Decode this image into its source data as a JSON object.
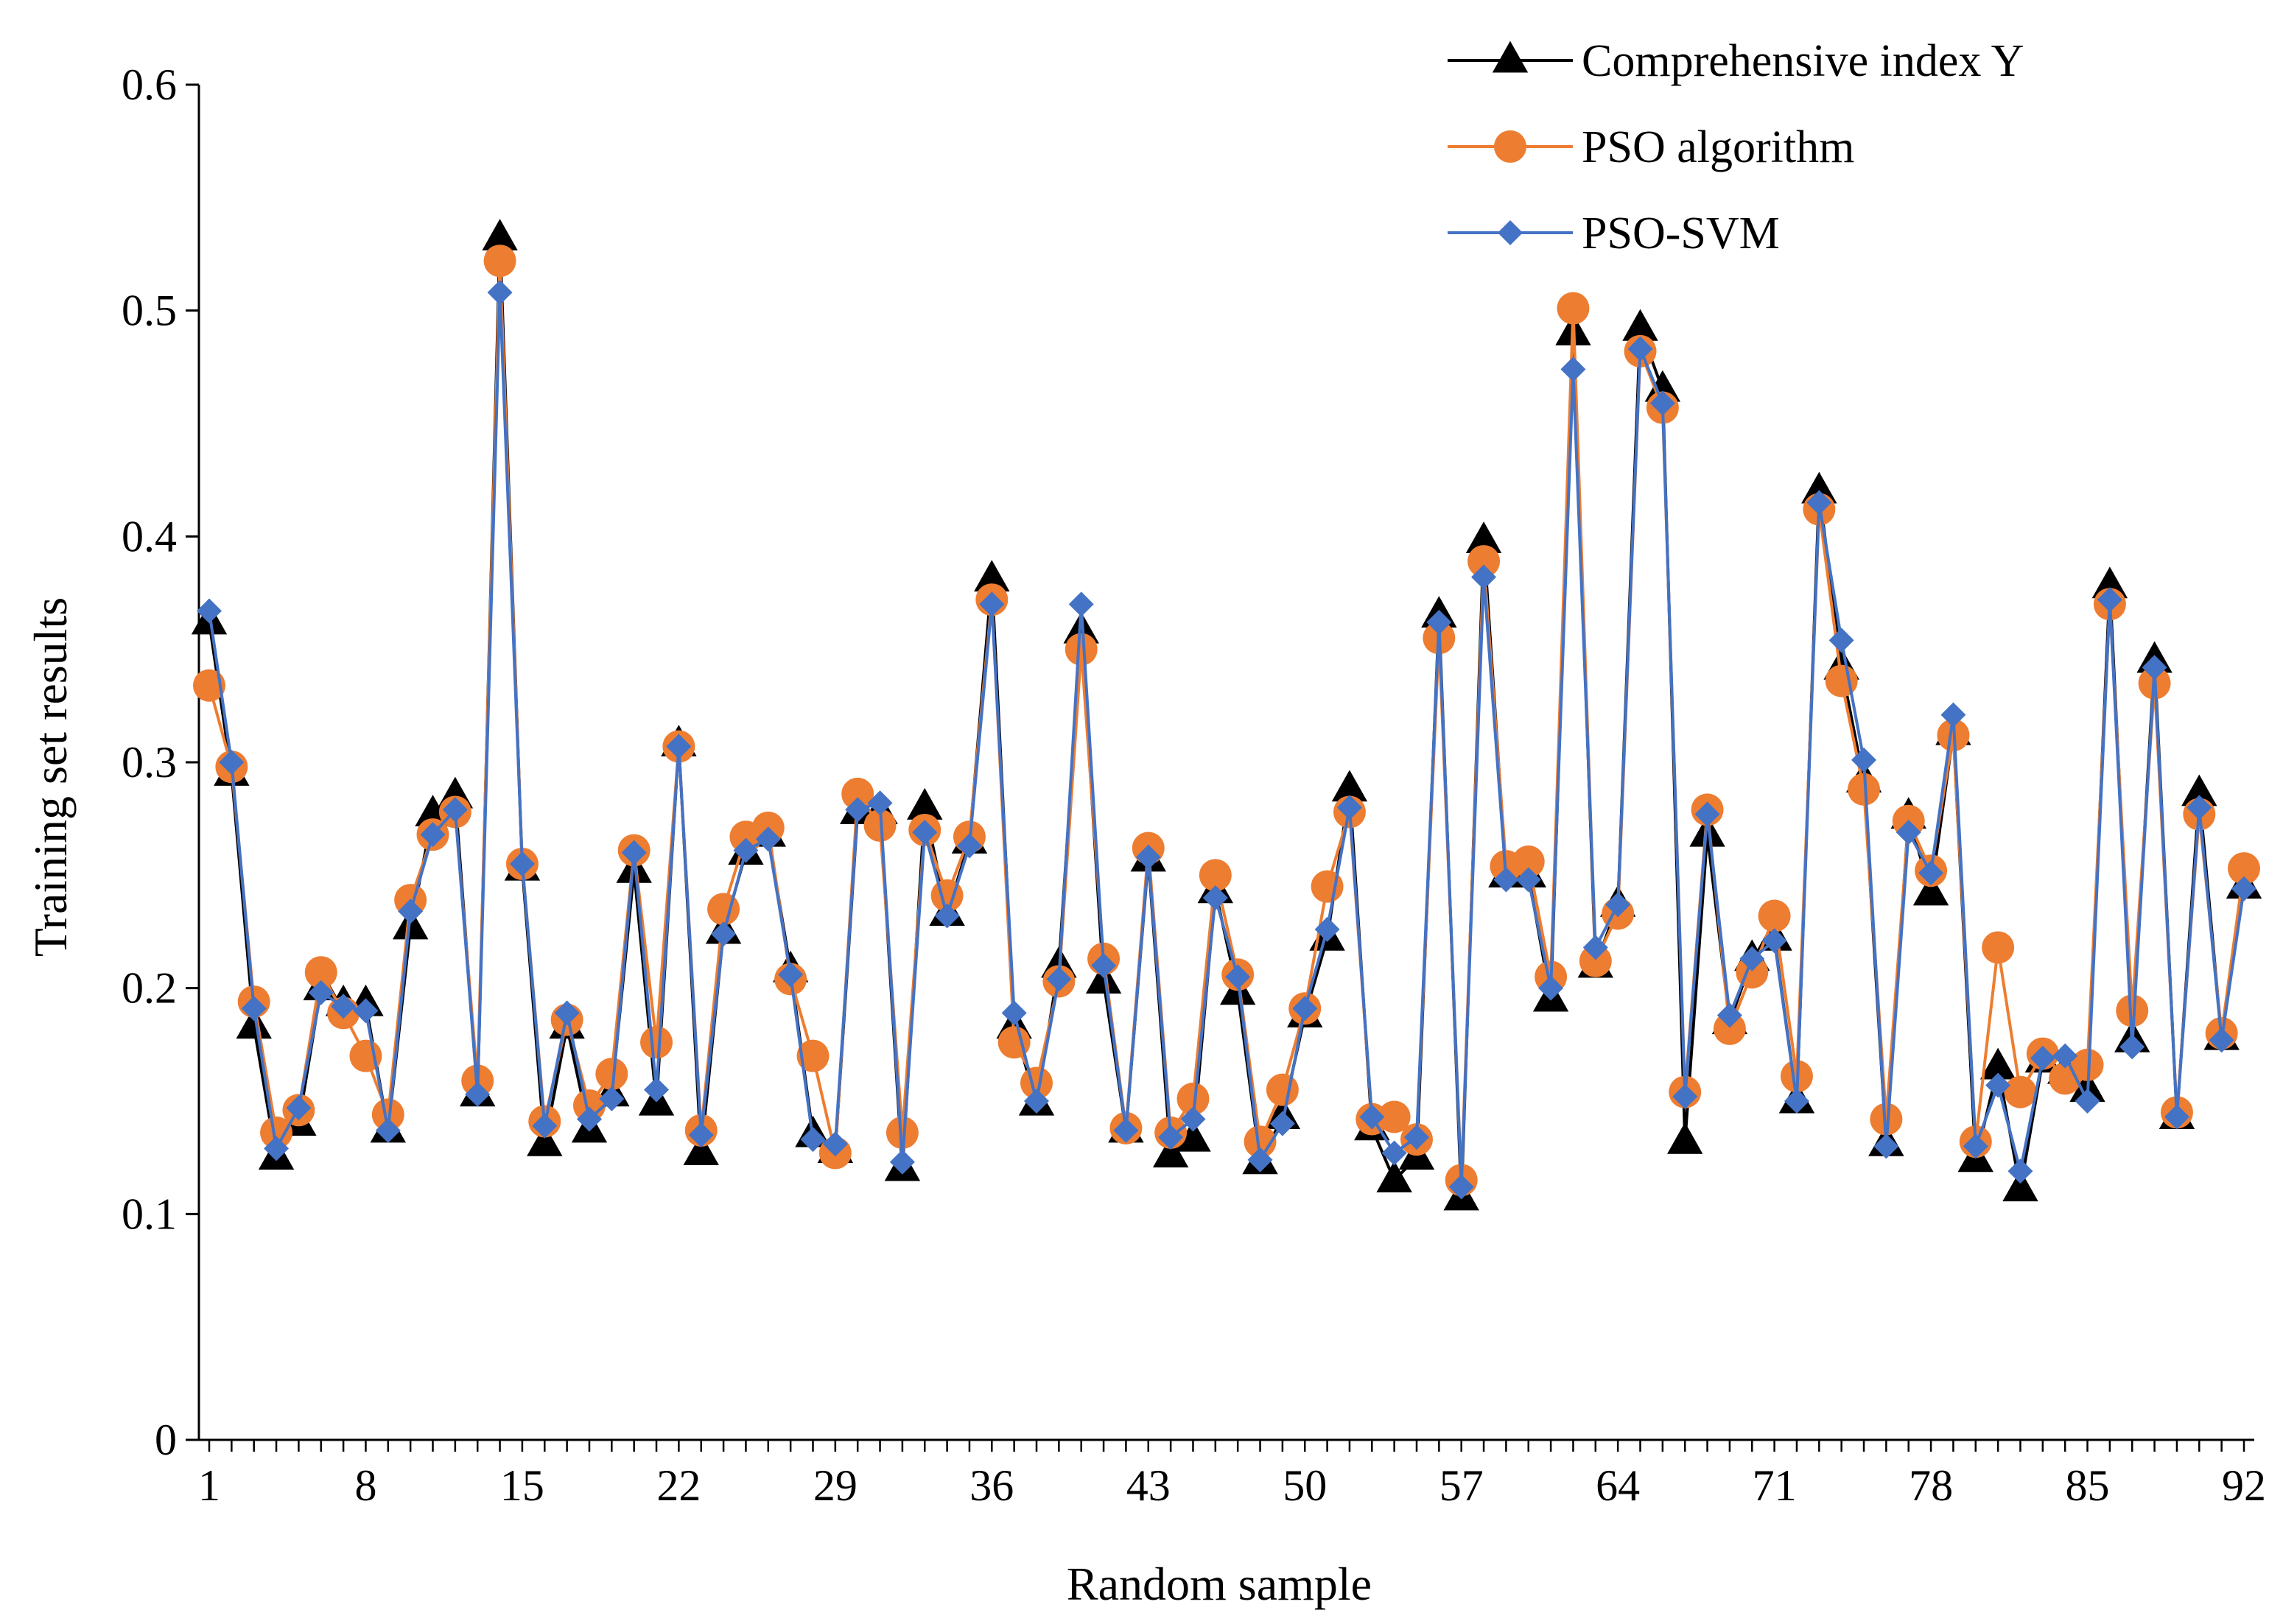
{
  "chart_data": {
    "type": "line",
    "title": "",
    "xlabel": "Random sample",
    "ylabel": "Training set results",
    "xlim": [
      1,
      92
    ],
    "ylim": [
      0,
      0.6
    ],
    "x_ticks": [
      1,
      8,
      15,
      22,
      29,
      36,
      43,
      50,
      57,
      64,
      71,
      78,
      85,
      92
    ],
    "y_ticks": [
      0,
      0.1,
      0.2,
      0.3,
      0.4,
      0.5,
      0.6
    ],
    "y_tick_labels": [
      "0",
      "0.1",
      "0.2",
      "0.3",
      "0.4",
      "0.5",
      "0.6"
    ],
    "grid": false,
    "legend_position": "top-right",
    "x": [
      1,
      2,
      3,
      4,
      5,
      6,
      7,
      8,
      9,
      10,
      11,
      12,
      13,
      14,
      15,
      16,
      17,
      18,
      19,
      20,
      21,
      22,
      23,
      24,
      25,
      26,
      27,
      28,
      29,
      30,
      31,
      32,
      33,
      34,
      35,
      36,
      37,
      38,
      39,
      40,
      41,
      42,
      43,
      44,
      45,
      46,
      47,
      48,
      49,
      50,
      51,
      52,
      53,
      54,
      55,
      56,
      57,
      58,
      59,
      60,
      61,
      62,
      63,
      64,
      65,
      66,
      67,
      68,
      69,
      70,
      71,
      72,
      73,
      74,
      75,
      76,
      77,
      78,
      79,
      80,
      81,
      82,
      83,
      84,
      85,
      86,
      87,
      88,
      89,
      90,
      91,
      92
    ],
    "series": [
      {
        "name": "Comprehensive index Y",
        "color": "#000000",
        "marker": "triangle",
        "values": [
          0.362,
          0.295,
          0.183,
          0.125,
          0.14,
          0.2,
          0.193,
          0.193,
          0.137,
          0.227,
          0.277,
          0.285,
          0.153,
          0.532,
          0.253,
          0.131,
          0.183,
          0.137,
          0.153,
          0.252,
          0.149,
          0.308,
          0.127,
          0.225,
          0.26,
          0.268,
          0.208,
          0.135,
          0.128,
          0.278,
          0.278,
          0.12,
          0.28,
          0.233,
          0.265,
          0.381,
          0.183,
          0.149,
          0.21,
          0.358,
          0.203,
          0.137,
          0.257,
          0.126,
          0.133,
          0.243,
          0.198,
          0.123,
          0.143,
          0.188,
          0.222,
          0.288,
          0.138,
          0.115,
          0.125,
          0.365,
          0.107,
          0.398,
          0.25,
          0.25,
          0.195,
          0.49,
          0.21,
          0.237,
          0.492,
          0.465,
          0.132,
          0.268,
          0.185,
          0.213,
          0.222,
          0.15,
          0.42,
          0.342,
          0.292,
          0.131,
          0.276,
          0.242,
          0.313,
          0.124,
          0.165,
          0.111,
          0.168,
          0.163,
          0.155,
          0.378,
          0.177,
          0.345,
          0.143,
          0.286,
          0.178,
          0.245
        ]
      },
      {
        "name": "PSO algorithm",
        "color": "#ED7D31",
        "marker": "circle",
        "values": [
          0.334,
          0.298,
          0.194,
          0.136,
          0.146,
          0.207,
          0.189,
          0.17,
          0.144,
          0.239,
          0.268,
          0.278,
          0.159,
          0.522,
          0.255,
          0.141,
          0.186,
          0.148,
          0.162,
          0.261,
          0.176,
          0.307,
          0.137,
          0.235,
          0.267,
          0.271,
          0.204,
          0.17,
          0.127,
          0.286,
          0.272,
          0.136,
          0.27,
          0.241,
          0.267,
          0.372,
          0.176,
          0.158,
          0.203,
          0.35,
          0.213,
          0.138,
          0.262,
          0.136,
          0.151,
          0.25,
          0.206,
          0.132,
          0.155,
          0.191,
          0.245,
          0.278,
          0.142,
          0.143,
          0.133,
          0.355,
          0.115,
          0.389,
          0.254,
          0.256,
          0.205,
          0.501,
          0.212,
          0.233,
          0.482,
          0.457,
          0.154,
          0.279,
          0.182,
          0.207,
          0.232,
          0.161,
          0.412,
          0.336,
          0.288,
          0.142,
          0.274,
          0.252,
          0.312,
          0.132,
          0.218,
          0.154,
          0.171,
          0.16,
          0.166,
          0.37,
          0.19,
          0.335,
          0.145,
          0.277,
          0.18,
          0.253
        ]
      },
      {
        "name": "PSO-SVM",
        "color": "#4472C4",
        "marker": "diamond",
        "values": [
          0.367,
          0.3,
          0.191,
          0.129,
          0.147,
          0.198,
          0.192,
          0.19,
          0.137,
          0.234,
          0.268,
          0.279,
          0.153,
          0.508,
          0.255,
          0.139,
          0.189,
          0.142,
          0.151,
          0.26,
          0.155,
          0.307,
          0.135,
          0.224,
          0.261,
          0.266,
          0.206,
          0.133,
          0.131,
          0.279,
          0.282,
          0.123,
          0.269,
          0.232,
          0.263,
          0.37,
          0.189,
          0.15,
          0.204,
          0.37,
          0.21,
          0.137,
          0.258,
          0.134,
          0.142,
          0.24,
          0.205,
          0.124,
          0.14,
          0.191,
          0.226,
          0.28,
          0.143,
          0.127,
          0.134,
          0.362,
          0.112,
          0.382,
          0.248,
          0.248,
          0.2,
          0.474,
          0.218,
          0.237,
          0.483,
          0.459,
          0.152,
          0.277,
          0.188,
          0.213,
          0.221,
          0.15,
          0.415,
          0.354,
          0.301,
          0.13,
          0.269,
          0.251,
          0.321,
          0.13,
          0.157,
          0.119,
          0.169,
          0.17,
          0.15,
          0.372,
          0.174,
          0.342,
          0.143,
          0.28,
          0.177,
          0.244
        ]
      }
    ]
  }
}
